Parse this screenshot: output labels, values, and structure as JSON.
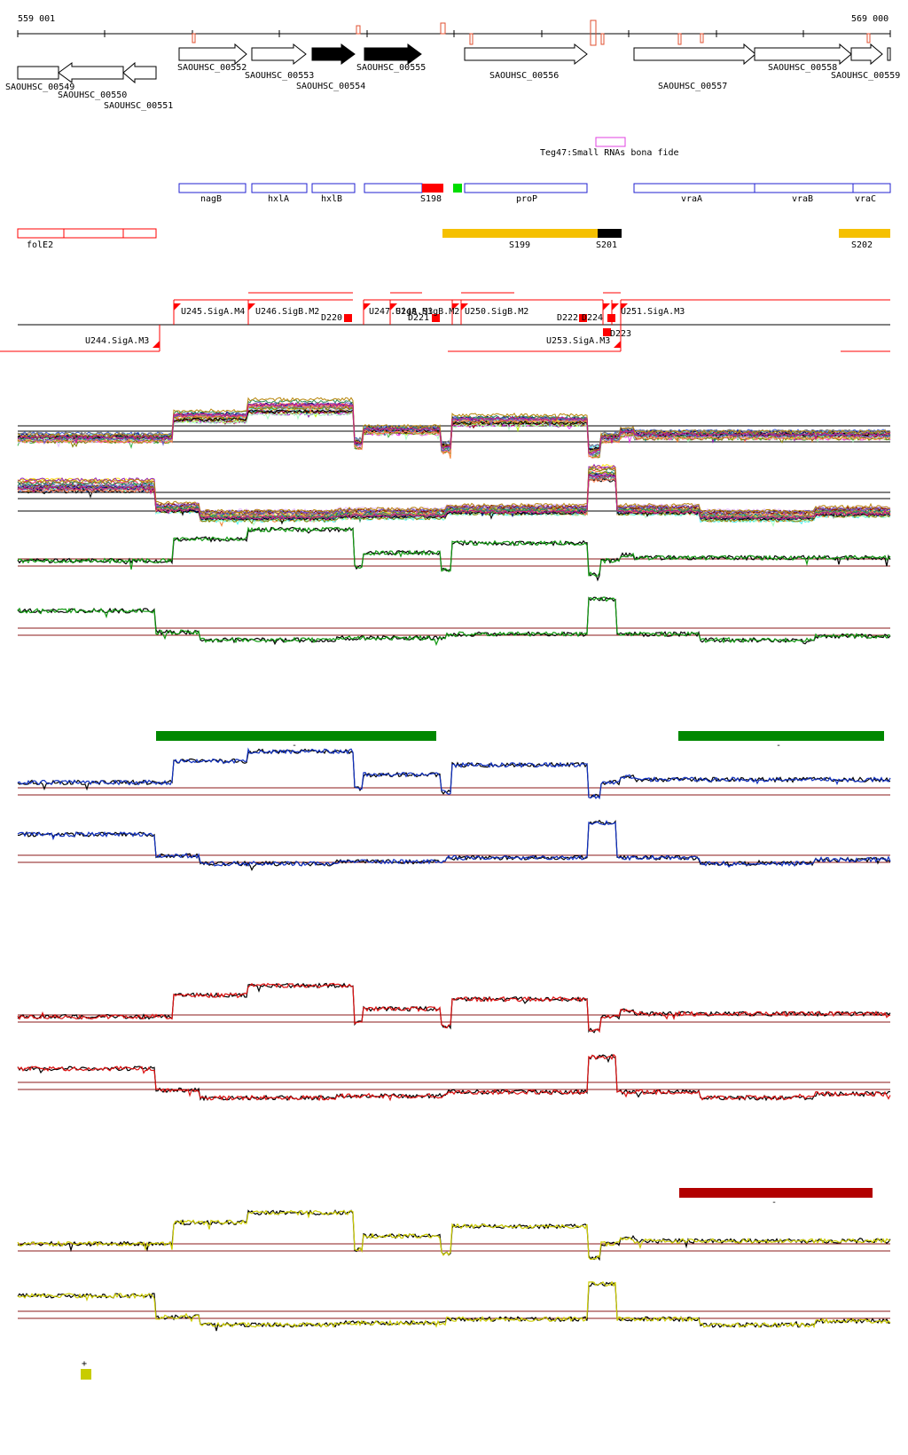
{
  "coords": {
    "start": "559 001",
    "end": "569 000"
  },
  "genes_top": [
    "SAOUHSC_00552",
    "SAOUHSC_00553",
    "SAOUHSC_00554",
    "SAOUHSC_00555",
    "SAOUHSC_00556",
    "SAOUHSC_00557",
    "SAOUHSC_00558",
    "SAOUHSC_00559"
  ],
  "genes_bottom": [
    "SAOUHSC_00549",
    "SAOUHSC_00550",
    "SAOUHSC_00551"
  ],
  "srna": "Teg47:Small RNAs bona fide",
  "gene_names": [
    "nagB",
    "hxlA",
    "hxlB",
    "S198",
    "proP",
    "vraA",
    "vraB",
    "vraC"
  ],
  "operon_labels": [
    "folE2",
    "S199",
    "S201",
    "S202"
  ],
  "promoters": [
    "U245.SigA.M4",
    "U246.SigB.M2",
    "U247.SigA.M3",
    "U248.SigB.M2",
    "U250.SigB.M2",
    "U251.SigA.M3",
    "U244.SigA.M3",
    "U253.SigA.M3"
  ],
  "terminators": [
    "D220",
    "D221",
    "D222",
    "D223",
    "D224"
  ],
  "condition_markers": [
    "-",
    "-",
    "-",
    "+"
  ],
  "colors": {
    "gene_outline": "#000000",
    "gene_filled": "#000000",
    "srna_box": "#e040e0",
    "annotation_blue": "#2020d0",
    "red": "#ff0000",
    "green_box": "#00dd00",
    "orange": "#f5c000",
    "black_bar": "#000000",
    "threshold": "#8b1a1a",
    "green_track": "#119911",
    "blue_track": "#1030c0",
    "red_track": "#dd1111",
    "yellow_track": "#cccc00",
    "green_bar": "#008800",
    "darkred_bar": "#b20000",
    "yellow_square": "#c8cc00"
  }
}
